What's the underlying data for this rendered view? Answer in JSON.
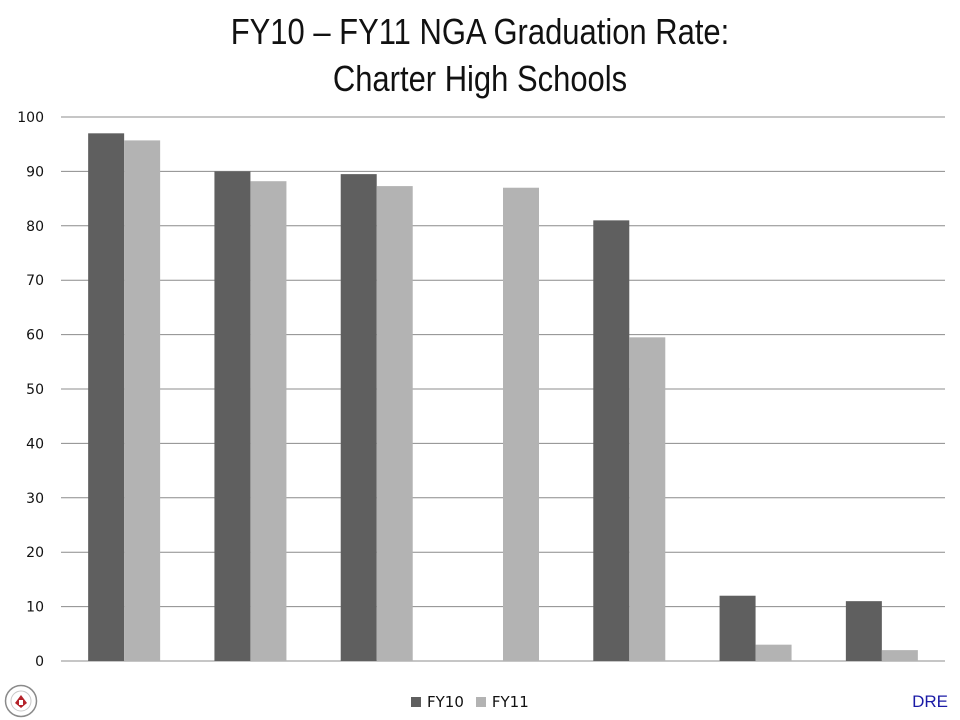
{
  "title": {
    "line1": "FY10 – FY11 NGA Graduation Rate:",
    "line2": "Charter High Schools"
  },
  "footer": {
    "tag": "DRE"
  },
  "colors": {
    "fy10": "#5f5f5f",
    "fy11": "#b3b3b3",
    "grid": "#8c8c8c",
    "tag": "#1a1aa6"
  },
  "logo": {
    "icon": "school-district-seal-icon"
  },
  "chart_data": {
    "type": "bar",
    "categories": [
      "",
      "",
      "",
      "",
      "",
      "",
      ""
    ],
    "series": [
      {
        "name": "FY10",
        "values": [
          97,
          90,
          89.5,
          null,
          81,
          12,
          11
        ]
      },
      {
        "name": "FY11",
        "values": [
          95.7,
          88.2,
          87.3,
          87,
          59.5,
          3,
          2
        ]
      }
    ],
    "yticks": [
      0,
      10,
      20,
      30,
      40,
      50,
      60,
      70,
      80,
      90,
      100
    ],
    "ylim": [
      0,
      100
    ],
    "grid": true,
    "legend": "bottom-center"
  }
}
